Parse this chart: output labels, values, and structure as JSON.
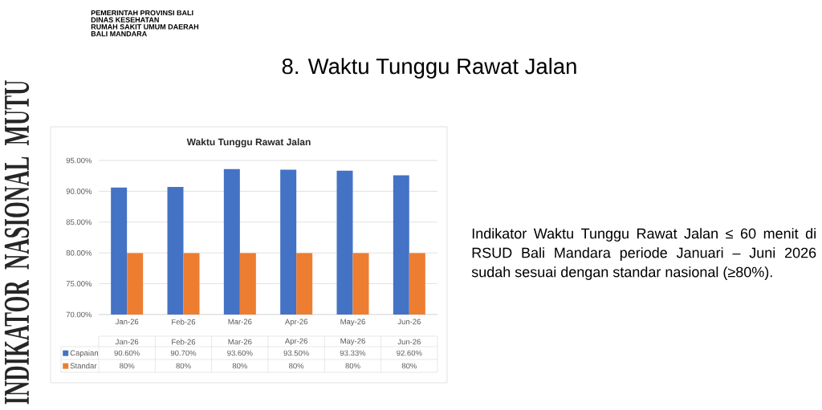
{
  "chart_data": {
    "type": "bar",
    "title": "8. Waktu Tunggu Rawat Jalan",
    "subtitle": "Waktu Tunggu Rawat Jalan",
    "categories": [
      "Jan-26",
      "Feb-26",
      "Mar-26",
      "Apr-26",
      "May-26",
      "Jun-26"
    ],
    "series": [
      {
        "name": "Capaian",
        "color": "#4472c4",
        "values": [
          90.6,
          90.7,
          93.6,
          93.5,
          93.33,
          92.6
        ],
        "value_labels": [
          "90.60%",
          "90.70%",
          "93.60%",
          "93.50%",
          "93.33%",
          "92.60%"
        ]
      },
      {
        "name": "Standar",
        "color": "#ed7d31",
        "values": [
          80,
          80,
          80,
          80,
          80,
          80
        ],
        "value_labels": [
          "80%",
          "80%",
          "80%",
          "80%",
          "80%",
          "80%"
        ]
      }
    ],
    "ylim": [
      70,
      95
    ],
    "yticks": [
      {
        "value": 70,
        "label": "70.00%"
      },
      {
        "value": 75,
        "label": "75.00%"
      },
      {
        "value": 80,
        "label": "80.00%"
      },
      {
        "value": 85,
        "label": "85.00%"
      },
      {
        "value": 90,
        "label": "90.00%"
      },
      {
        "value": 95,
        "label": "95.00%"
      }
    ],
    "grid": "y",
    "legend": "bottom",
    "annotations": [
      "PEMERINTAH PROVINSI BALI",
      "DINAS KESEHATAN",
      "RUMAH SAKIT UMUM DAERAH",
      "BALI MANDARA",
      "INDIKATOR NASIONAL MUTU",
      "Indikator Waktu Tunggu Rawat Jalan ≤ 60 menit di RSUD Bali Mandara periode Januari – Juni 2026 sudah sesuai dengan standar nasional (≥80%)."
    ]
  }
}
